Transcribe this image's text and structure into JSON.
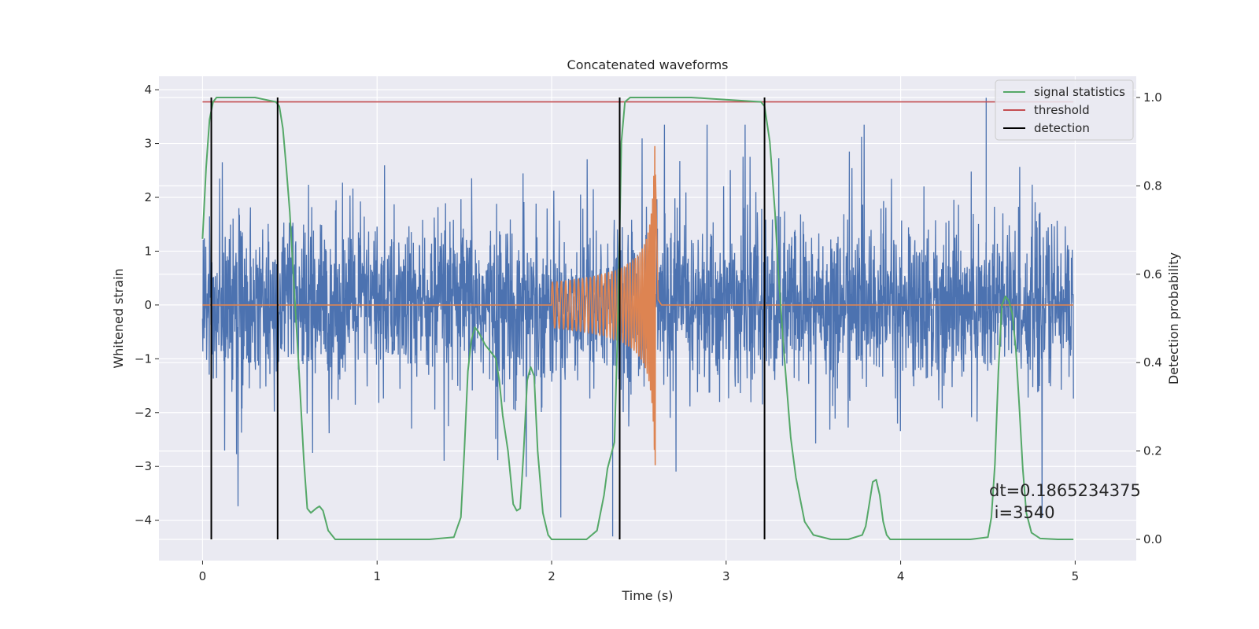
{
  "chart_data": {
    "type": "line",
    "title": "Concatenated waveforms",
    "xlabel": "Time (s)",
    "ylabel_left": "Whitened strain",
    "ylabel_right": "Detection probability",
    "xlim": [
      -0.25,
      5.35
    ],
    "ylim_left": [
      -4.75,
      4.25
    ],
    "ylim_right": [
      -0.048,
      1.048
    ],
    "x_ticks": [
      0,
      1,
      2,
      3,
      4,
      5
    ],
    "x_tick_labels": [
      "0",
      "1",
      "2",
      "3",
      "4",
      "5"
    ],
    "y_left_ticks": [
      4,
      3,
      2,
      1,
      0,
      -1,
      -2,
      -3,
      -4
    ],
    "y_left_tick_labels": [
      "4",
      "3",
      "2",
      "1",
      "0",
      "−1",
      "−2",
      "−3",
      "−4"
    ],
    "y_right_ticks": [
      1.0,
      0.8,
      0.6,
      0.4,
      0.2,
      0.0
    ],
    "y_right_tick_labels": [
      "1.0",
      "0.8",
      "0.6",
      "0.4",
      "0.2",
      "0.0"
    ],
    "grid": true,
    "legend_position": "top-right",
    "colors": {
      "background": "#eaeaf2",
      "grid": "#ffffff",
      "strain": "#4c72b0",
      "injected": "#dd8452",
      "signal_statistics": "#55a868",
      "threshold": "#c44e52",
      "detection": "#000000"
    },
    "series": [
      {
        "name": "signal statistics",
        "axis": "right",
        "color": "#55a868",
        "x": [
          0,
          0.02,
          0.04,
          0.06,
          0.08,
          0.12,
          0.3,
          0.42,
          0.44,
          0.46,
          0.48,
          0.5,
          0.52,
          0.55,
          0.58,
          0.6,
          0.62,
          0.65,
          0.67,
          0.69,
          0.72,
          0.76,
          0.85,
          1.0,
          1.3,
          1.44,
          1.48,
          1.5,
          1.52,
          1.54,
          1.56,
          1.58,
          1.62,
          1.66,
          1.68,
          1.7,
          1.72,
          1.75,
          1.78,
          1.8,
          1.82,
          1.84,
          1.86,
          1.88,
          1.9,
          1.92,
          1.95,
          1.98,
          2.0,
          2.04,
          2.1,
          2.2,
          2.26,
          2.3,
          2.32,
          2.34,
          2.36,
          2.38,
          2.4,
          2.42,
          2.45,
          2.5,
          2.8,
          3.2,
          3.22,
          3.25,
          3.28,
          3.3,
          3.33,
          3.37,
          3.4,
          3.45,
          3.5,
          3.6,
          3.7,
          3.78,
          3.8,
          3.82,
          3.84,
          3.86,
          3.88,
          3.9,
          3.92,
          3.94,
          3.97,
          4.1,
          4.4,
          4.5,
          4.52,
          4.54,
          4.56,
          4.58,
          4.6,
          4.62,
          4.64,
          4.66,
          4.68,
          4.7,
          4.72,
          4.75,
          4.8,
          4.9,
          4.99
        ],
        "y": [
          0.68,
          0.84,
          0.95,
          0.99,
          1.0,
          1.0,
          1.0,
          0.99,
          0.98,
          0.93,
          0.84,
          0.74,
          0.6,
          0.4,
          0.18,
          0.07,
          0.06,
          0.07,
          0.075,
          0.065,
          0.02,
          0.0,
          0.0,
          0.0,
          0.0,
          0.005,
          0.05,
          0.2,
          0.38,
          0.45,
          0.48,
          0.47,
          0.44,
          0.42,
          0.41,
          0.36,
          0.28,
          0.2,
          0.08,
          0.065,
          0.07,
          0.2,
          0.36,
          0.39,
          0.37,
          0.2,
          0.06,
          0.01,
          0.0,
          0.0,
          0.0,
          0.0,
          0.02,
          0.1,
          0.16,
          0.19,
          0.22,
          0.5,
          0.9,
          0.99,
          1.0,
          1.0,
          1.0,
          0.99,
          0.98,
          0.9,
          0.74,
          0.6,
          0.43,
          0.23,
          0.14,
          0.04,
          0.01,
          0.0,
          0.0,
          0.01,
          0.03,
          0.08,
          0.13,
          0.135,
          0.1,
          0.04,
          0.01,
          0.0,
          0.0,
          0.0,
          0.0,
          0.005,
          0.05,
          0.17,
          0.38,
          0.53,
          0.55,
          0.54,
          0.51,
          0.43,
          0.3,
          0.16,
          0.06,
          0.015,
          0.002,
          0.0,
          0.0
        ]
      },
      {
        "name": "threshold",
        "axis": "right",
        "color": "#c44e52",
        "x": [
          0,
          4.99
        ],
        "y": [
          0.99,
          0.99
        ]
      },
      {
        "name": "detection",
        "axis": "right",
        "color": "#000000",
        "x_positions": [
          0.05,
          0.43,
          2.39,
          3.22
        ],
        "y_range": [
          0.0,
          1.0
        ]
      }
    ],
    "annotations": [
      "dt=0.1865234375",
      " i=3540"
    ]
  }
}
